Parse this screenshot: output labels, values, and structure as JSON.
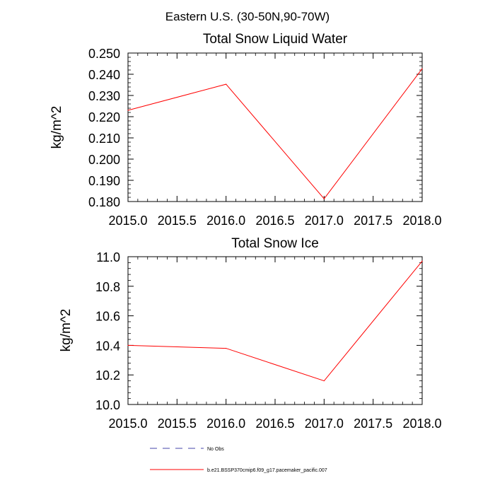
{
  "figure": {
    "suptitle": "Eastern U.S. (30-50N,90-70W)"
  },
  "chart_data": [
    {
      "type": "line",
      "title": "Total Snow Liquid Water",
      "xlabel": "",
      "ylabel": "kg/m^2",
      "xlim": [
        2015.0,
        2018.0
      ],
      "ylim": [
        0.18,
        0.25
      ],
      "xticks": [
        "2015.0",
        "2015.5",
        "2016.0",
        "2016.5",
        "2017.0",
        "2017.5",
        "2018.0"
      ],
      "yticks": [
        "0.180",
        "0.190",
        "0.200",
        "0.210",
        "0.220",
        "0.230",
        "0.240",
        "0.250"
      ],
      "x": [
        2015.0,
        2016.0,
        2017.0,
        2018.0
      ],
      "series": [
        {
          "name": "b.e21.BSSP370cmip6.f09_g17.pacemaker_pacific.007",
          "color": "#ff0000",
          "values": [
            0.223,
            0.2353,
            0.1813,
            0.2426
          ]
        }
      ]
    },
    {
      "type": "line",
      "title": "Total Snow Ice",
      "xlabel": "",
      "ylabel": "kg/m^2",
      "xlim": [
        2015.0,
        2018.0
      ],
      "ylim": [
        10.0,
        11.0
      ],
      "xticks": [
        "2015.0",
        "2015.5",
        "2016.0",
        "2016.5",
        "2017.0",
        "2017.5",
        "2018.0"
      ],
      "yticks": [
        "10.0",
        "10.2",
        "10.4",
        "10.6",
        "10.8",
        "11.0"
      ],
      "x": [
        2015.0,
        2016.0,
        2017.0,
        2018.0
      ],
      "series": [
        {
          "name": "b.e21.BSSP370cmip6.f09_g17.pacemaker_pacific.007",
          "color": "#ff0000",
          "values": [
            10.4,
            10.38,
            10.16,
            10.97
          ]
        }
      ]
    }
  ],
  "legend": {
    "entries": [
      {
        "label": "No Obs",
        "color": "#4444aa",
        "style": "dashed"
      },
      {
        "label": "b.e21.BSSP370cmip6.f09_g17.pacemaker_pacific.007",
        "color": "#ff0000",
        "style": "solid"
      }
    ]
  }
}
